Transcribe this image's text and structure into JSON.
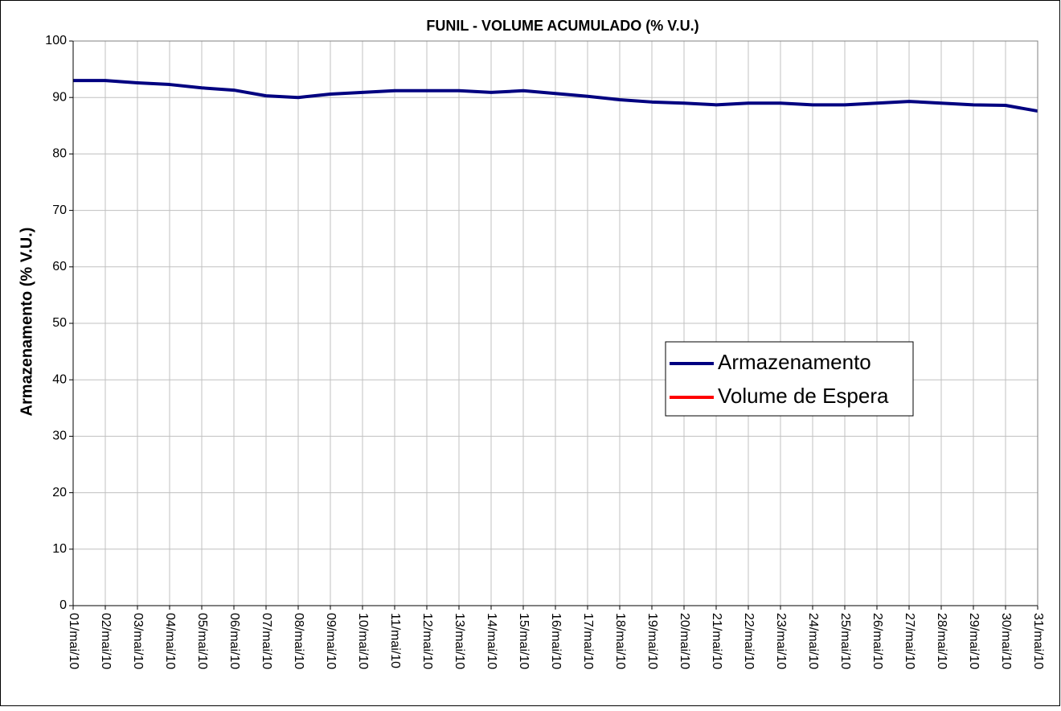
{
  "chart_data": {
    "type": "line",
    "title": "FUNIL - VOLUME ACUMULADO (% V.U.)",
    "y_label": "Armazenamento (% V.U.)",
    "categories": [
      "01/mai/10",
      "02/mai/10",
      "03/mai/10",
      "04/mai/10",
      "05/mai/10",
      "06/mai/10",
      "07/mai/10",
      "08/mai/10",
      "09/mai/10",
      "10/mai/10",
      "11/mai/10",
      "12/mai/10",
      "13/mai/10",
      "14/mai/10",
      "15/mai/10",
      "16/mai/10",
      "17/mai/10",
      "18/mai/10",
      "19/mai/10",
      "20/mai/10",
      "21/mai/10",
      "22/mai/10",
      "23/mai/10",
      "24/mai/10",
      "25/mai/10",
      "26/mai/10",
      "27/mai/10",
      "28/mai/10",
      "29/mai/10",
      "30/mai/10",
      "31/mai/10"
    ],
    "series": [
      {
        "name": "Armazenamento",
        "color": "#000080",
        "values": [
          93.0,
          93.0,
          92.6,
          92.3,
          91.7,
          91.3,
          90.3,
          90.0,
          90.6,
          90.9,
          91.2,
          91.2,
          91.2,
          90.9,
          91.2,
          90.7,
          90.2,
          89.6,
          89.2,
          89.0,
          88.7,
          89.0,
          89.0,
          88.7,
          88.7,
          89.0,
          89.3,
          89.0,
          88.7,
          88.6,
          87.6
        ]
      },
      {
        "name": "Volume de Espera",
        "color": "#ff0000",
        "values": [
          null,
          null,
          null,
          null,
          null,
          null,
          null,
          null,
          null,
          null,
          null,
          null,
          null,
          null,
          null,
          null,
          null,
          null,
          null,
          null,
          null,
          null,
          null,
          null,
          null,
          null,
          null,
          null,
          null,
          null,
          null
        ]
      }
    ],
    "ylim": [
      0,
      100
    ],
    "yticks": [
      0,
      10,
      20,
      30,
      40,
      50,
      60,
      70,
      80,
      90,
      100
    ],
    "grid": true
  }
}
